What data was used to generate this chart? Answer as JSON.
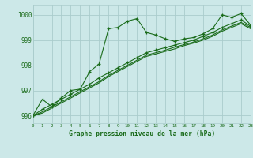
{
  "title": "Graphe pression niveau de la mer (hPa)",
  "bg_color": "#cce8e8",
  "grid_color": "#aacccc",
  "line_color": "#1a6b1a",
  "xlim": [
    0,
    23
  ],
  "ylim": [
    995.7,
    1000.4
  ],
  "yticks": [
    996,
    997,
    998,
    999,
    1000
  ],
  "xticks": [
    0,
    1,
    2,
    3,
    4,
    5,
    6,
    7,
    8,
    9,
    10,
    11,
    12,
    13,
    14,
    15,
    16,
    17,
    18,
    19,
    20,
    21,
    22,
    23
  ],
  "s1_x": [
    0,
    1,
    2,
    3,
    4,
    5,
    6,
    7,
    8,
    9,
    10,
    11,
    12,
    13,
    14,
    15,
    16,
    17,
    18,
    19,
    20,
    21,
    22,
    23
  ],
  "s1_y": [
    996.0,
    996.65,
    996.35,
    996.7,
    997.0,
    997.05,
    997.75,
    998.05,
    999.45,
    999.5,
    999.75,
    999.85,
    999.3,
    999.2,
    999.05,
    998.95,
    999.05,
    999.1,
    999.25,
    999.45,
    1000.0,
    999.9,
    1000.05,
    999.6
  ],
  "s2_x": [
    0,
    1,
    2,
    3,
    4,
    5,
    6,
    7,
    8,
    9,
    10,
    11,
    12,
    13,
    14,
    15,
    16,
    17,
    18,
    19,
    20,
    21,
    22,
    23
  ],
  "s2_y": [
    996.0,
    996.25,
    996.45,
    996.65,
    996.85,
    997.05,
    997.25,
    997.5,
    997.7,
    997.9,
    998.1,
    998.3,
    998.5,
    998.6,
    998.7,
    998.8,
    998.9,
    999.0,
    999.15,
    999.3,
    999.5,
    999.65,
    999.8,
    999.55
  ],
  "s3_x": [
    0,
    1,
    2,
    3,
    4,
    5,
    6,
    7,
    8,
    9,
    10,
    11,
    12,
    13,
    14,
    15,
    16,
    17,
    18,
    19,
    20,
    21,
    22,
    23
  ],
  "s3_y": [
    996.0,
    996.15,
    996.35,
    996.55,
    996.75,
    996.95,
    997.15,
    997.35,
    997.6,
    997.8,
    998.0,
    998.2,
    998.4,
    998.5,
    998.6,
    998.72,
    998.82,
    998.92,
    999.05,
    999.2,
    999.4,
    999.55,
    999.7,
    999.5
  ],
  "s4_x": [
    0,
    1,
    2,
    3,
    4,
    5,
    6,
    7,
    8,
    9,
    10,
    11,
    12,
    13,
    14,
    15,
    16,
    17,
    18,
    19,
    20,
    21,
    22,
    23
  ],
  "s4_y": [
    996.0,
    996.1,
    996.3,
    996.5,
    996.7,
    996.9,
    997.1,
    997.3,
    997.55,
    997.75,
    997.95,
    998.15,
    998.35,
    998.45,
    998.55,
    998.65,
    998.78,
    998.88,
    999.0,
    999.15,
    999.35,
    999.5,
    999.65,
    999.45
  ]
}
